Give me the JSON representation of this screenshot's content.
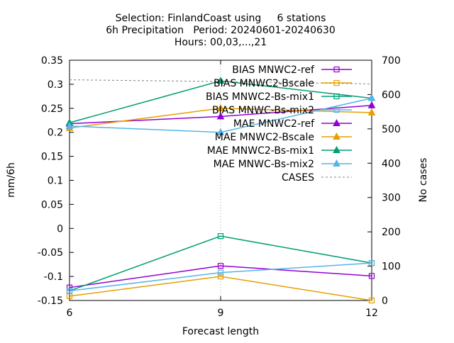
{
  "chart_data": {
    "type": "line",
    "title_lines": [
      "Selection: FinlandCoast using     6 stations",
      "6h Precipitation   Period: 20240601-20240630",
      "Hours: 00,03,...,21"
    ],
    "xlabel": "Forecast length",
    "ylabel": "mm/6h",
    "y2label": "No cases",
    "x": [
      6,
      9,
      12
    ],
    "xlim": [
      6,
      12
    ],
    "ylim": [
      -0.15,
      0.35
    ],
    "y2lim": [
      0,
      700
    ],
    "x_ticks": [
      6,
      9,
      12
    ],
    "y_ticks": [
      "-0.15",
      "-0.1",
      "-0.05",
      "0",
      "0.05",
      "0.1",
      "0.15",
      "0.2",
      "0.25",
      "0.3",
      "0.35"
    ],
    "y2_ticks": [
      "0",
      "100",
      "200",
      "300",
      "400",
      "500",
      "600",
      "700"
    ],
    "grid": "vertical dotted at x=9",
    "legend_position": "top-right",
    "series": [
      {
        "name": "BIAS MNWC2-ref",
        "axis": "y1",
        "color": "#9400d3",
        "marker": "open-square",
        "values": [
          -0.123,
          -0.078,
          -0.099
        ]
      },
      {
        "name": "BIAS MNWC2-Bscale",
        "axis": "y1",
        "color": "#e69f00",
        "marker": "open-square",
        "values": [
          -0.141,
          -0.1,
          -0.15
        ]
      },
      {
        "name": "BIAS MNWC2-Bs-mix1",
        "axis": "y1",
        "color": "#009e73",
        "marker": "open-square",
        "values": [
          -0.13,
          -0.016,
          -0.072
        ]
      },
      {
        "name": "BIAS MNWC-Bs-mix2",
        "axis": "y1",
        "color": "#56b4e9",
        "marker": "open-square",
        "values": [
          -0.13,
          -0.092,
          -0.072
        ]
      },
      {
        "name": "MAE MNWC2-ref",
        "axis": "y1",
        "color": "#9400d3",
        "marker": "filled-triangle",
        "values": [
          0.218,
          0.233,
          0.256
        ]
      },
      {
        "name": "MAE MNWC2-Bscale",
        "axis": "y1",
        "color": "#e69f00",
        "marker": "filled-triangle",
        "values": [
          0.209,
          0.25,
          0.241
        ]
      },
      {
        "name": "MAE MNWC2-Bs-mix1",
        "axis": "y1",
        "color": "#009e73",
        "marker": "filled-triangle",
        "values": [
          0.22,
          0.307,
          0.271
        ]
      },
      {
        "name": "MAE MNWC-Bs-mix2",
        "axis": "y1",
        "color": "#56b4e9",
        "marker": "filled-triangle",
        "values": [
          0.213,
          0.2,
          0.271
        ]
      },
      {
        "name": "CASES",
        "axis": "y2",
        "color": "#808080",
        "marker": "none",
        "dashed": true,
        "values": [
          643,
          638,
          631
        ]
      }
    ]
  }
}
